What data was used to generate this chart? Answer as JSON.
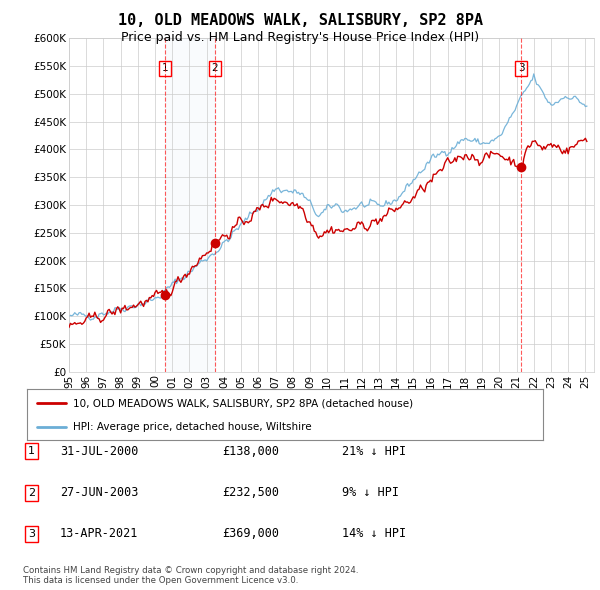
{
  "title": "10, OLD MEADOWS WALK, SALISBURY, SP2 8PA",
  "subtitle": "Price paid vs. HM Land Registry's House Price Index (HPI)",
  "title_fontsize": 11,
  "subtitle_fontsize": 9,
  "hpi_color": "#6baed6",
  "sale_color": "#cc0000",
  "background_color": "#ffffff",
  "grid_color": "#cccccc",
  "ylim": [
    0,
    600000
  ],
  "yticks": [
    0,
    50000,
    100000,
    150000,
    200000,
    250000,
    300000,
    350000,
    400000,
    450000,
    500000,
    550000,
    600000
  ],
  "ytick_labels": [
    "£0",
    "£50K",
    "£100K",
    "£150K",
    "£200K",
    "£250K",
    "£300K",
    "£350K",
    "£400K",
    "£450K",
    "£500K",
    "£550K",
    "£600K"
  ],
  "sales": [
    {
      "date": 2000.58,
      "price": 138000,
      "label": "1"
    },
    {
      "date": 2003.48,
      "price": 232500,
      "label": "2"
    },
    {
      "date": 2021.28,
      "price": 369000,
      "label": "3"
    }
  ],
  "sale_dates_str": [
    "31-JUL-2000",
    "27-JUN-2003",
    "13-APR-2021"
  ],
  "sale_prices_str": [
    "£138,000",
    "£232,500",
    "£369,000"
  ],
  "sale_hpi_str": [
    "21% ↓ HPI",
    "9% ↓ HPI",
    "14% ↓ HPI"
  ],
  "legend_line1": "10, OLD MEADOWS WALK, SALISBURY, SP2 8PA (detached house)",
  "legend_line2": "HPI: Average price, detached house, Wiltshire",
  "footnote": "Contains HM Land Registry data © Crown copyright and database right 2024.\nThis data is licensed under the Open Government Licence v3.0.",
  "xmin": 1995,
  "xmax": 2025.5,
  "xtick_years": [
    1995,
    1996,
    1997,
    1998,
    1999,
    2000,
    2001,
    2002,
    2003,
    2004,
    2005,
    2006,
    2007,
    2008,
    2009,
    2010,
    2011,
    2012,
    2013,
    2014,
    2015,
    2016,
    2017,
    2018,
    2019,
    2020,
    2021,
    2022,
    2023,
    2024,
    2025
  ]
}
